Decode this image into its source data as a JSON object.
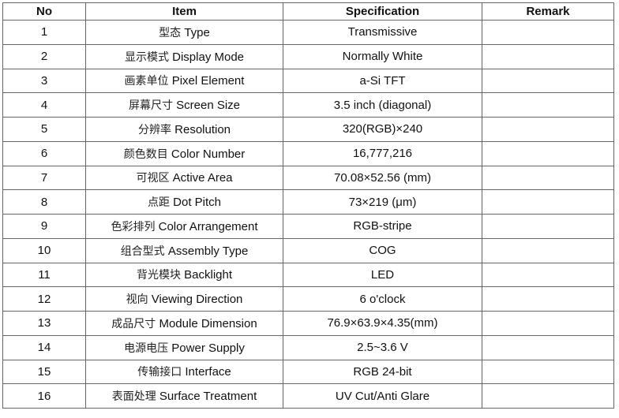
{
  "headers": {
    "no": "No",
    "item": "Item",
    "spec": "Specification",
    "remark": "Remark"
  },
  "rows": [
    {
      "no": "1",
      "item_zh": "型态",
      "item_en": "Type",
      "spec": "Transmissive",
      "remark": ""
    },
    {
      "no": "2",
      "item_zh": "显示模式",
      "item_en": "Display Mode",
      "spec": "Normally White",
      "remark": ""
    },
    {
      "no": "3",
      "item_zh": "画素单位",
      "item_en": "Pixel Element",
      "spec": "a-Si TFT",
      "remark": ""
    },
    {
      "no": "4",
      "item_zh": "屏幕尺寸",
      "item_en": "Screen Size",
      "spec": "3.5 inch (diagonal)",
      "remark": ""
    },
    {
      "no": "5",
      "item_zh": "分辨率",
      "item_en": "Resolution",
      "spec": "320(RGB)×240",
      "remark": ""
    },
    {
      "no": "6",
      "item_zh": "颜色数目",
      "item_en": "Color Number",
      "spec": "16,777,216",
      "remark": ""
    },
    {
      "no": "7",
      "item_zh": "可视区",
      "item_en": "Active Area",
      "spec": "70.08×52.56 (mm)",
      "remark": ""
    },
    {
      "no": "8",
      "item_zh": "点距",
      "item_en": "Dot Pitch",
      "spec": "73×219 (μm)",
      "remark": ""
    },
    {
      "no": "9",
      "item_zh": "色彩排列",
      "item_en": "Color Arrangement",
      "spec": "RGB-stripe",
      "remark": ""
    },
    {
      "no": "10",
      "item_zh": "组合型式",
      "item_en": "Assembly Type",
      "spec": "COG",
      "remark": ""
    },
    {
      "no": "11",
      "item_zh": "背光模块",
      "item_en": "Backlight",
      "spec": "LED",
      "remark": ""
    },
    {
      "no": "12",
      "item_zh": "视向",
      "item_en": "Viewing Direction",
      "spec": "6 o'clock",
      "remark": ""
    },
    {
      "no": "13",
      "item_zh": "成品尺寸",
      "item_en": "Module Dimension",
      "spec": "76.9×63.9×4.35(mm)",
      "remark": ""
    },
    {
      "no": "14",
      "item_zh": "电源电压",
      "item_en": "Power Supply",
      "spec": "2.5~3.6 V",
      "remark": ""
    },
    {
      "no": "15",
      "item_zh": "传输接口",
      "item_en": "Interface",
      "spec": "RGB 24-bit",
      "remark": ""
    },
    {
      "no": "16",
      "item_zh": "表面处理",
      "item_en": "Surface Treatment",
      "spec": "UV Cut/Anti Glare",
      "remark": ""
    }
  ]
}
